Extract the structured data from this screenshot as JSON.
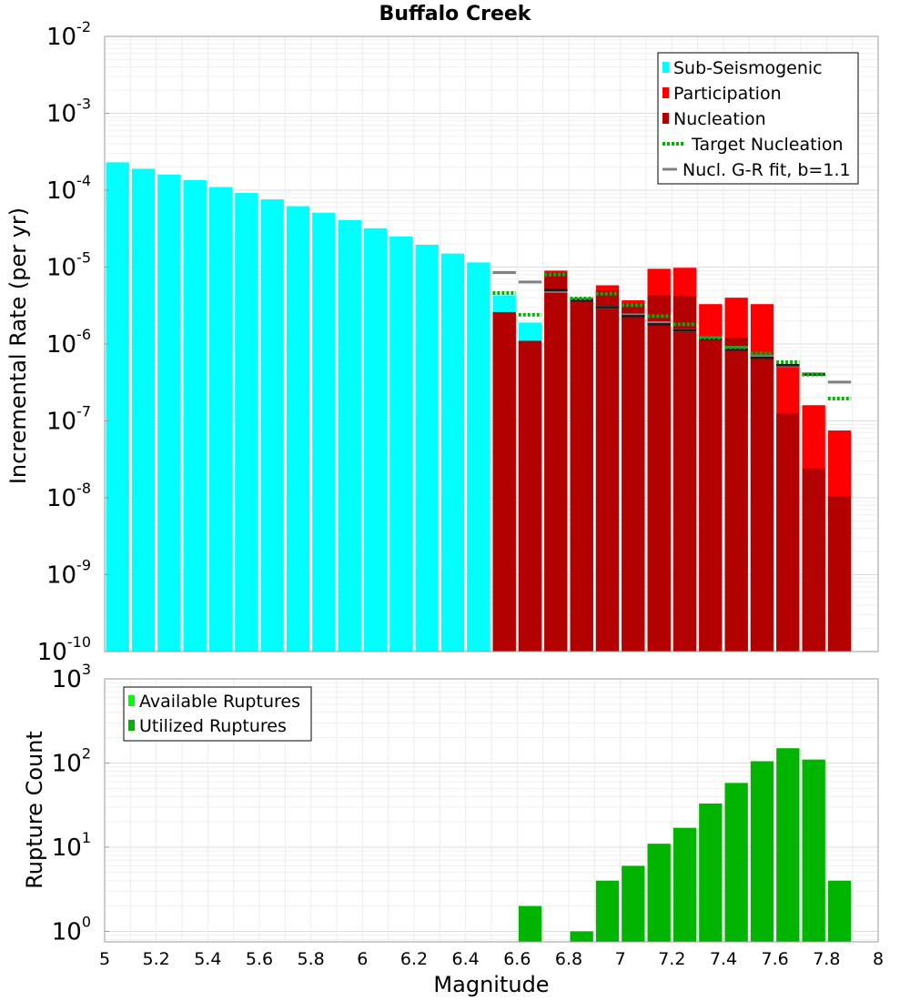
{
  "chart_data": [
    {
      "type": "bar",
      "title": "Buffalo Creek",
      "ylabel": "Incremental Rate (per yr)",
      "yscale": "log",
      "ylim": [
        1e-10,
        0.01
      ],
      "xlim": [
        5,
        8
      ],
      "ytick_exponents": [
        -10,
        -9,
        -8,
        -7,
        -6,
        -5,
        -4,
        -3,
        -2
      ],
      "legend_position": "top-right",
      "legend": [
        {
          "label": "Sub-Seismogenic",
          "key": "sub",
          "style": "bar"
        },
        {
          "label": "Participation",
          "key": "part",
          "style": "bar"
        },
        {
          "label": "Nucleation",
          "key": "nucl",
          "style": "bar"
        },
        {
          "label": "Target Nucleation",
          "key": "target",
          "style": "dotted"
        },
        {
          "label": "Nucl. G-R fit, b=1.1",
          "key": "gr",
          "style": "line"
        }
      ],
      "colors": {
        "sub": "#00ffff",
        "part": "#ff0000",
        "nucl": "#b30000",
        "target": "#00b400",
        "gr": "#808080",
        "nucl_line": "#1a1a1a"
      },
      "bin_width": 0.1,
      "series": [
        {
          "name": "Sub-Seismogenic",
          "key": "sub",
          "x": [
            5.05,
            5.15,
            5.25,
            5.35,
            5.45,
            5.55,
            5.65,
            5.75,
            5.85,
            5.95,
            6.05,
            6.15,
            6.25,
            6.35,
            6.45,
            6.55,
            6.65
          ],
          "values": [
            0.00023,
            0.00019,
            0.00016,
            0.000135,
            0.00011,
            9.2e-05,
            7.6e-05,
            6.2e-05,
            5.1e-05,
            4.1e-05,
            3.2e-05,
            2.5e-05,
            1.95e-05,
            1.5e-05,
            1.15e-05,
            4.3e-06,
            1.9e-06
          ]
        },
        {
          "name": "Participation",
          "key": "part",
          "x": [
            6.55,
            6.65,
            6.75,
            6.85,
            6.95,
            7.05,
            7.15,
            7.25,
            7.35,
            7.45,
            7.55,
            7.65,
            7.75,
            7.85
          ],
          "values": [
            2.6e-06,
            1.1e-06,
            9e-06,
            4e-06,
            5.8e-06,
            3.7e-06,
            9.5e-06,
            9.8e-06,
            3.3e-06,
            4e-06,
            3.3e-06,
            5.5e-07,
            1.6e-07,
            7.5e-08
          ]
        },
        {
          "name": "Nucleation",
          "key": "nucl",
          "x": [
            6.55,
            6.65,
            6.75,
            6.85,
            6.95,
            7.05,
            7.15,
            7.25,
            7.35,
            7.45,
            7.55,
            7.65,
            7.75,
            7.85
          ],
          "values": [
            2.6e-06,
            1.1e-06,
            8.5e-06,
            3.9e-06,
            5e-06,
            3.4e-06,
            4.3e-06,
            4.2e-06,
            1.25e-06,
            1.2e-06,
            7.5e-07,
            1.25e-07,
            2.4e-08,
            1.05e-08
          ]
        },
        {
          "name": "Target Nucleation",
          "key": "target",
          "x": [
            6.55,
            6.65,
            6.75,
            6.85,
            6.95,
            7.05,
            7.15,
            7.25,
            7.35,
            7.45,
            7.55,
            7.65,
            7.75,
            7.85
          ],
          "values": [
            4.6e-06,
            2.4e-06,
            8e-06,
            3.9e-06,
            4.5e-06,
            3.2e-06,
            2.3e-06,
            1.8e-06,
            1.2e-06,
            9e-07,
            7.5e-07,
            5.8e-07,
            4e-07,
            1.95e-07
          ]
        },
        {
          "name": "Nucl. G-R fit, b=1.1",
          "key": "gr",
          "x": [
            6.55,
            6.65,
            6.75,
            6.85,
            6.95,
            7.05,
            7.15,
            7.25,
            7.35,
            7.45,
            7.55,
            7.65,
            7.75,
            7.85
          ],
          "values": [
            8.5e-06,
            6.4e-06,
            4.8e-06,
            3.8e-06,
            3e-06,
            2.4e-06,
            1.9e-06,
            1.5e-06,
            1.2e-06,
            9e-07,
            7e-07,
            5.2e-07,
            4.1e-07,
            3.2e-07
          ]
        }
      ],
      "nucleation_markers": {
        "x": [
          6.75,
          6.85,
          6.95,
          7.05,
          7.15,
          7.25,
          7.35,
          7.45,
          7.55,
          7.65,
          7.75
        ],
        "values": [
          5e-06,
          3.7e-06,
          3e-06,
          2.3e-06,
          1.8e-06,
          1.5e-06,
          1.15e-06,
          8.5e-07,
          6.6e-07,
          5.3e-07,
          4e-07
        ]
      }
    },
    {
      "type": "bar",
      "xlabel": "Magnitude",
      "ylabel": "Rupture Count",
      "yscale": "log",
      "ylim": [
        0.75,
        1000
      ],
      "xlim": [
        5,
        8
      ],
      "ytick_exponents": [
        0,
        1,
        2,
        3
      ],
      "xticks": [
        "5",
        "5.2",
        "5.4",
        "5.6",
        "5.8",
        "6",
        "6.2",
        "6.4",
        "6.6",
        "6.8",
        "7",
        "7.2",
        "7.4",
        "7.6",
        "7.8",
        "8"
      ],
      "legend_position": "top-left",
      "legend": [
        {
          "label": "Available Ruptures",
          "key": "avail"
        },
        {
          "label": "Utilized Ruptures",
          "key": "util"
        }
      ],
      "colors": {
        "avail": "#00ff00",
        "util": "#00b400"
      },
      "bin_width": 0.1,
      "series": [
        {
          "name": "Utilized Ruptures",
          "key": "util",
          "x": [
            6.65,
            6.85,
            6.95,
            7.05,
            7.15,
            7.25,
            7.35,
            7.45,
            7.55,
            7.65,
            7.75,
            7.85
          ],
          "values": [
            2,
            1,
            4,
            6,
            11,
            17,
            33,
            58,
            105,
            150,
            110,
            4
          ]
        }
      ]
    }
  ]
}
